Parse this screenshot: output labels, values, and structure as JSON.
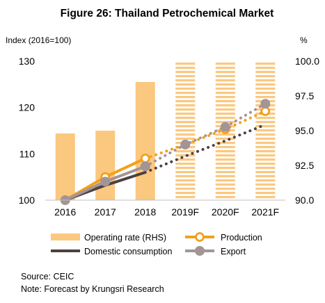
{
  "chart_data": {
    "type": "bar+line",
    "title": "Figure 26: Thailand Petrochemical Market",
    "left_axis": {
      "label": "Index (2016=100)",
      "range": [
        100,
        130
      ],
      "ticks": [
        "100",
        "110",
        "120",
        "130"
      ]
    },
    "right_axis": {
      "label": "%",
      "range": [
        90.0,
        100.0
      ],
      "ticks": [
        "90.0",
        "92.5",
        "95.0",
        "97.5",
        "100.0"
      ]
    },
    "categories": [
      "2016",
      "2017",
      "2018",
      "2019F",
      "2020F",
      "2021F"
    ],
    "grid": false,
    "legend_position": "bottom",
    "bars": {
      "name": "Operating rate (RHS)",
      "axis": "right",
      "color": "#fbc880",
      "values": [
        94.8,
        95.0,
        98.5,
        100.0,
        100.0,
        100.0
      ],
      "forecast_from_index": 3
    },
    "series": [
      {
        "name": "Production",
        "axis": "left",
        "color": "#f2a01c",
        "marker": "ring",
        "values": [
          100,
          105,
          109,
          112,
          115.3,
          119.2
        ],
        "forecast_from_index": 2
      },
      {
        "name": "Domestic consumption",
        "axis": "left",
        "color": "#4d4040",
        "marker": "none",
        "values": [
          100,
          103.2,
          106,
          109.5,
          112.8,
          116.3
        ],
        "forecast_from_index": 2
      },
      {
        "name": "Export",
        "axis": "left",
        "color": "#a39495",
        "marker": "dot",
        "values": [
          100,
          104,
          107.3,
          112,
          115.8,
          120.8
        ],
        "forecast_from_index": 2
      }
    ]
  },
  "source": "Source: CEIC",
  "note": "Note: Forecast by Krungsri Research"
}
